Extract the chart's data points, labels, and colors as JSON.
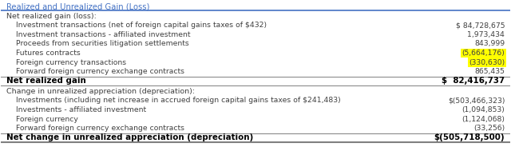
{
  "title": "Realized and Unrealized Gain (Loss)",
  "title_color": "#4472C4",
  "bg_color": "#FFFFFF",
  "section1_header": "Net realized gain (loss):",
  "section1_rows": [
    [
      "    Investment transactions (net of foreign capital gains taxes of $432)",
      "$ 84,728,675",
      false
    ],
    [
      "    Investment transactions - affiliated investment",
      "1,973,434",
      false
    ],
    [
      "    Proceeds from securities litigation settlements",
      "843,999",
      false
    ],
    [
      "    Futures contracts",
      "(5,664,176)",
      true
    ],
    [
      "    Foreign currency transactions",
      "(330,630)",
      true
    ],
    [
      "    Forward foreign currency exchange contracts",
      "865,435",
      false
    ]
  ],
  "section1_total_label": "Net realized gain",
  "section1_total_value": "$  82,416,737",
  "section2_header": "Change in unrealized appreciation (depreciation):",
  "section2_rows": [
    [
      "    Investments (including net increase in accrued foreign capital gains taxes of $241,483)",
      "$(503,466,323)",
      false
    ],
    [
      "    Investments - affiliated investment",
      "(1,094,853)",
      false
    ],
    [
      "    Foreign currency",
      "(1,124,068)",
      false
    ],
    [
      "    Forward foreign currency exchange contracts",
      "(33,256)",
      false
    ]
  ],
  "section2_total_label": "Net change in unrealized appreciation (depreciation)",
  "section2_total_value": "$(505,718,500)",
  "highlight_color": "#FFFF00",
  "header_line_color": "#4472C4",
  "separator_color": "#808080",
  "text_color": "#404040",
  "row_font_size": 6.8,
  "header_font_size": 7.2,
  "total_font_size": 7.4
}
